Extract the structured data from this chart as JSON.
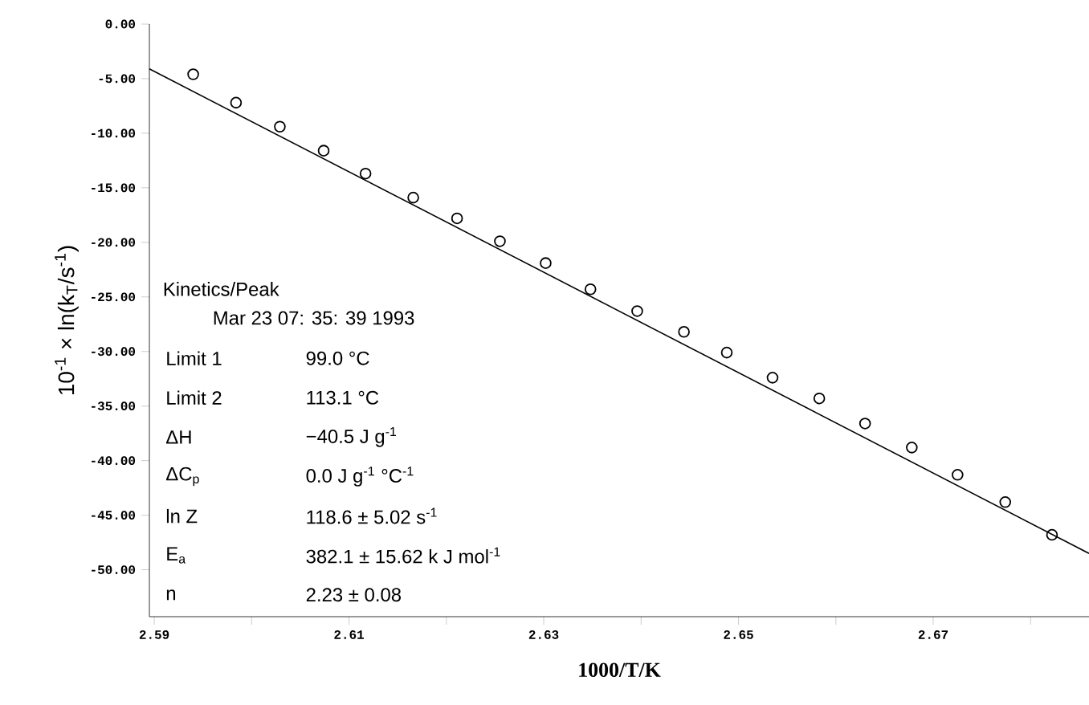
{
  "chart_data": {
    "type": "scatter",
    "xlabel": "1000/T/K",
    "ylabel": "10$^{-1}$ × ln(k$_{T}$/s$^{-1}$)",
    "xlim": [
      2.5895,
      2.686
    ],
    "ylim": [
      -54.3,
      0
    ],
    "xticks": [
      2.59,
      {
        "value": 2.6,
        "label": null
      },
      2.61,
      {
        "value": 2.62,
        "label": null
      },
      2.63,
      {
        "value": 2.64,
        "label": null
      },
      2.65,
      {
        "value": 2.66,
        "label": null
      },
      2.67,
      {
        "value": 2.68,
        "label": null
      }
    ],
    "yticks": [
      {
        "value": 0,
        "label": "0.00"
      },
      {
        "value": -5,
        "label": "-5.00"
      },
      {
        "value": -10,
        "label": "-10.00"
      },
      {
        "value": -15,
        "label": "-15.00"
      },
      {
        "value": -20,
        "label": "-20.00"
      },
      {
        "value": -25,
        "label": "-25.00"
      },
      {
        "value": -30,
        "label": "-30.00"
      },
      {
        "value": -35,
        "label": "-35.00"
      },
      {
        "value": -40,
        "label": "-40.00"
      },
      {
        "value": -45,
        "label": "-45.00"
      },
      {
        "value": -50,
        "label": "-50.00"
      }
    ],
    "grid": false,
    "series": [
      {
        "marker": "circle",
        "color": "#000000",
        "x": [
          2.594,
          2.5984,
          2.6029,
          2.6074,
          2.6117,
          2.6166,
          2.6211,
          2.6255,
          2.6302,
          2.6348,
          2.6396,
          2.6444,
          2.6488,
          2.6535,
          2.6583,
          2.663,
          2.6678,
          2.6725,
          2.6774,
          2.6822
        ],
        "values": [
          -4.6,
          -7.2,
          -9.4,
          -11.6,
          -13.7,
          -15.9,
          -17.8,
          -19.9,
          -21.9,
          -24.3,
          -26.3,
          -28.2,
          -30.1,
          -32.4,
          -34.3,
          -36.6,
          -38.8,
          -41.3,
          -43.8,
          -46.8
        ]
      },
      {
        "type": "line",
        "marker": "none",
        "color": "#000000",
        "x": [
          2.5895,
          2.686
        ],
        "values": [
          -4.1,
          -48.5
        ]
      }
    ],
    "annotations": [
      "Kinetics/Peak",
      "Mar 23 07: 35: 39 1993",
      "Limit 1",
      "99.0 °C",
      "Limit 2",
      "113.1 °C",
      "ΔH",
      "−40.5 J g$^{-1}$",
      "ΔC$_{p}$",
      "0.0 J g$^{-1}$ °C$^{-1}$",
      "ln Z",
      "118.6 ± 5.02 s$^{-1}$",
      "E$_{a}$",
      "382.1 ± 15.62 k J mol$^{-1}$",
      "n",
      "2.23 ± 0.08"
    ]
  }
}
